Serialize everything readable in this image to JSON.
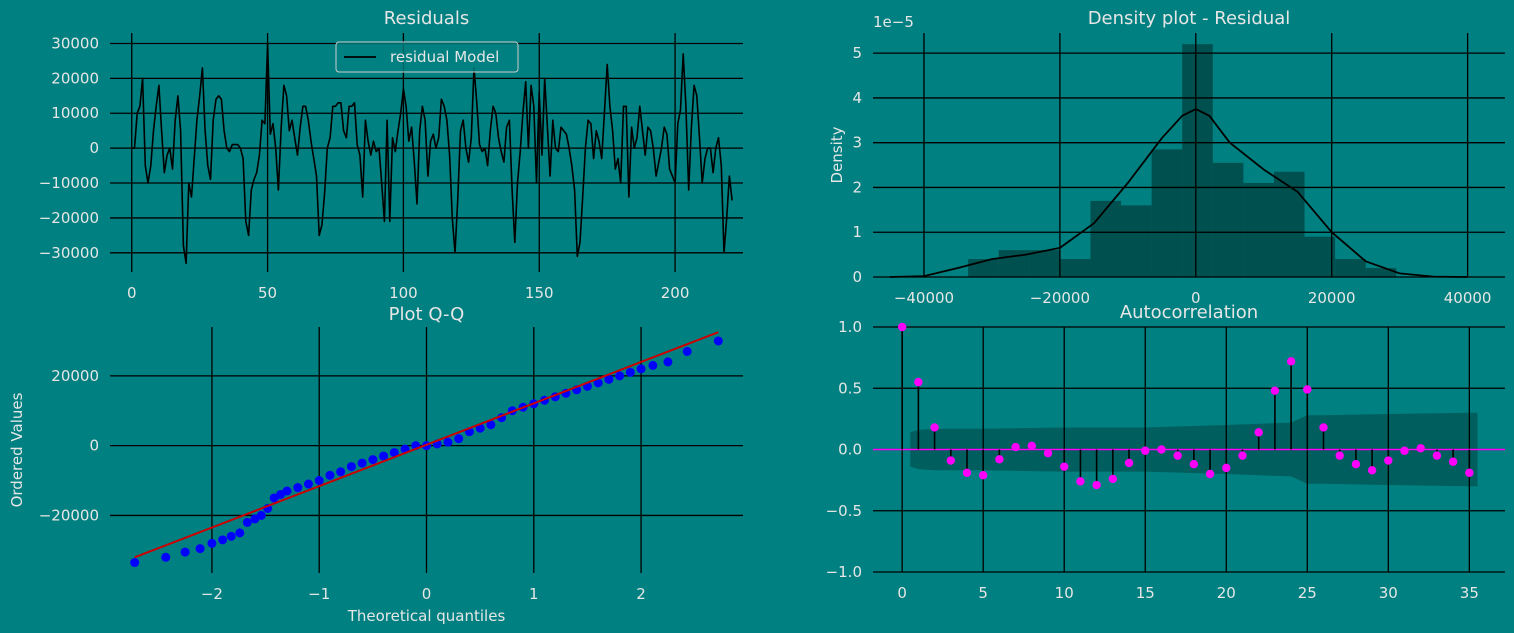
{
  "colors": {
    "background": "#008080",
    "grid": "#000000",
    "residual_line": "#000000",
    "hist_fill": "#004a4a",
    "kde_line": "#000000",
    "qq_points": "#0000ff",
    "qq_line": "#cc0000",
    "acf_marker": "#ff00ff",
    "acf_band": "#005a5a",
    "text": "#e6e6e6"
  },
  "chart_data": [
    {
      "id": "residuals",
      "type": "line",
      "title": "Residuals",
      "xlabel": "",
      "ylabel": "",
      "xlim": [
        -8,
        225
      ],
      "ylim": [
        -35500,
        33000
      ],
      "xticks": [
        0,
        50,
        100,
        150,
        200
      ],
      "xtick_labels": [
        "0",
        "50",
        "100",
        "150",
        "200"
      ],
      "yticks": [
        -30000,
        -20000,
        -10000,
        0,
        10000,
        20000,
        30000
      ],
      "ytick_labels": [
        "−30000",
        "−20000",
        "−10000",
        "0",
        "10000",
        "20000",
        "30000"
      ],
      "grid": true,
      "legend": {
        "position": "top-center",
        "entries": [
          "residual Model"
        ]
      },
      "series": [
        {
          "name": "residual Model",
          "x_start": 0,
          "values": [
            0,
            0,
            10000,
            12000,
            20000,
            -5000,
            -10000,
            -5000,
            5000,
            12000,
            18000,
            5000,
            -7000,
            -2000,
            0,
            -6000,
            8000,
            15000,
            5000,
            -28000,
            -33000,
            -10000,
            -14000,
            -3000,
            8000,
            15000,
            23000,
            5000,
            -5000,
            -9000,
            8000,
            14000,
            15000,
            14000,
            5000,
            0,
            -1000,
            1000,
            1000,
            1000,
            0,
            -3000,
            -21000,
            -25000,
            -12000,
            -9000,
            -7000,
            -2000,
            8000,
            7000,
            30000,
            4000,
            7000,
            0,
            -12000,
            6000,
            18000,
            15000,
            5000,
            8000,
            3000,
            -2000,
            6000,
            12000,
            12000,
            8000,
            2000,
            -3000,
            -8000,
            -25000,
            -22000,
            -13000,
            0,
            3000,
            12000,
            12000,
            13000,
            13000,
            5000,
            3000,
            12000,
            12000,
            13000,
            1000,
            -2000,
            -14000,
            8000,
            2000,
            -2000,
            2000,
            -1000,
            0,
            -10000,
            -21000,
            8000,
            -21000,
            3000,
            -1000,
            5000,
            10000,
            17000,
            12000,
            2000,
            6000,
            -4000,
            -16000,
            5000,
            12000,
            8000,
            -8000,
            2000,
            4000,
            0,
            3000,
            14000,
            12000,
            8000,
            -2000,
            -20000,
            -30000,
            -15000,
            5000,
            8000,
            0,
            -4000,
            3000,
            23000,
            13000,
            1000,
            -1000,
            0,
            -5000,
            5000,
            12000,
            10000,
            3000,
            -1000,
            -4000,
            6000,
            8000,
            -12000,
            -27000,
            -10000,
            -1000,
            10000,
            19000,
            0,
            18000,
            12000,
            -10000,
            16000,
            -2000,
            20000,
            6000,
            -8000,
            8000,
            0,
            -1000,
            6000,
            5000,
            4000,
            0,
            -5000,
            -12000,
            -31000,
            -27000,
            -14000,
            0,
            8000,
            7000,
            -3000,
            5000,
            2000,
            -3000,
            10000,
            24000,
            12000,
            5000,
            -6000,
            -3000,
            -10000,
            12000,
            12000,
            -14000,
            6000,
            0,
            3000,
            12000,
            5000,
            -2000,
            6000,
            5000,
            0,
            -8000,
            -4000,
            0,
            6000,
            4000,
            -6000,
            -8000,
            -10000,
            7000,
            11000,
            27000,
            12000,
            -12000,
            6000,
            18000,
            15000,
            3000,
            -10000,
            -3000,
            0,
            0,
            -7000,
            0,
            3000,
            -5000,
            -30000,
            -20000,
            -8000,
            -15000
          ]
        }
      ]
    },
    {
      "id": "density",
      "type": "bar",
      "title": "Density plot - Residual",
      "xlabel": "",
      "ylabel": "Density",
      "y_scale_label": "1e−5",
      "xlim": [
        -47500,
        45500
      ],
      "ylim": [
        0,
        5.45
      ],
      "xticks": [
        -40000,
        -20000,
        0,
        20000,
        40000
      ],
      "xtick_labels": [
        "−40000",
        "−20000",
        "0",
        "20000",
        "40000"
      ],
      "yticks": [
        0,
        1,
        2,
        3,
        4,
        5
      ],
      "ytick_labels": [
        "0",
        "1",
        "2",
        "3",
        "4",
        "5"
      ],
      "grid": true,
      "histogram": {
        "bin_edges": [
          -33500,
          -29000,
          -24500,
          -20000,
          -15500,
          -11000,
          -6500,
          -2000,
          2500,
          7000,
          11500,
          16000,
          20500,
          25000,
          29500
        ],
        "values": [
          0.4,
          0.6,
          0.6,
          0.4,
          1.7,
          1.6,
          2.85,
          5.2,
          2.55,
          2.1,
          2.35,
          0.9,
          0.4,
          0.2
        ]
      },
      "kde": {
        "x": [
          -45000,
          -40000,
          -35000,
          -30000,
          -25000,
          -20000,
          -15000,
          -10000,
          -5000,
          -2000,
          0,
          2000,
          5000,
          10000,
          15000,
          20000,
          25000,
          30000,
          35000,
          40000
        ],
        "y": [
          0.0,
          0.02,
          0.2,
          0.4,
          0.5,
          0.65,
          1.2,
          2.1,
          3.1,
          3.6,
          3.75,
          3.6,
          3.0,
          2.4,
          1.9,
          1.0,
          0.35,
          0.08,
          0.01,
          0.0
        ]
      }
    },
    {
      "id": "qq",
      "type": "scatter",
      "title": "Plot Q-Q",
      "xlabel": "Theoretical quantiles",
      "ylabel": "Ordered Values",
      "xlim": [
        -2.95,
        2.95
      ],
      "ylim": [
        -36500,
        34000
      ],
      "xticks": [
        -2,
        -1,
        0,
        1,
        2
      ],
      "xtick_labels": [
        "−2",
        "−1",
        "0",
        "1",
        "2"
      ],
      "yticks": [
        -20000,
        0,
        20000
      ],
      "ytick_labels": [
        "−20000",
        "0",
        "20000"
      ],
      "grid": true,
      "points": {
        "x": [
          -2.72,
          -2.43,
          -2.25,
          -2.11,
          -2.0,
          -1.9,
          -1.82,
          -1.74,
          -1.67,
          -1.6,
          -1.54,
          -1.48,
          -1.42,
          -1.36,
          -1.3,
          -1.2,
          -1.1,
          -1.0,
          -0.9,
          -0.8,
          -0.7,
          -0.6,
          -0.5,
          -0.4,
          -0.3,
          -0.2,
          -0.1,
          0.0,
          0.1,
          0.2,
          0.3,
          0.4,
          0.5,
          0.6,
          0.7,
          0.8,
          0.9,
          1.0,
          1.1,
          1.2,
          1.3,
          1.4,
          1.5,
          1.6,
          1.7,
          1.8,
          1.9,
          2.0,
          2.11,
          2.25,
          2.43,
          2.72
        ],
        "y": [
          -33500,
          -32000,
          -30500,
          -29500,
          -28000,
          -27000,
          -26000,
          -25000,
          -22000,
          -21000,
          -20000,
          -18000,
          -15000,
          -14000,
          -13000,
          -12000,
          -11000,
          -10000,
          -8500,
          -7500,
          -6000,
          -5000,
          -4000,
          -3000,
          -2000,
          -1000,
          0,
          0,
          500,
          1000,
          2000,
          4000,
          5000,
          6000,
          8000,
          10000,
          11000,
          12000,
          13000,
          14000,
          15000,
          16000,
          17000,
          18000,
          19000,
          20000,
          21000,
          22000,
          23000,
          24000,
          27000,
          30000
        ]
      },
      "fit_line": {
        "x": [
          -2.72,
          2.72
        ],
        "y": [
          -32000,
          32500
        ]
      }
    },
    {
      "id": "acf",
      "type": "scatter",
      "title": "Autocorrelation",
      "xlabel": "",
      "ylabel": "",
      "xlim": [
        -1.8,
        37.2
      ],
      "ylim": [
        -1.0,
        1.0
      ],
      "xticks": [
        0,
        5,
        10,
        15,
        20,
        25,
        30,
        35
      ],
      "xtick_labels": [
        "0",
        "5",
        "10",
        "15",
        "20",
        "25",
        "30",
        "35"
      ],
      "yticks": [
        -1.0,
        -0.5,
        0.0,
        0.5,
        1.0
      ],
      "ytick_labels": [
        "−1.0",
        "−0.5",
        "0.0",
        "0.5",
        "1.0"
      ],
      "grid": true,
      "lags": [
        0,
        1,
        2,
        3,
        4,
        5,
        6,
        7,
        8,
        9,
        10,
        11,
        12,
        13,
        14,
        15,
        16,
        17,
        18,
        19,
        20,
        21,
        22,
        23,
        24,
        25,
        26,
        27,
        28,
        29,
        30,
        31,
        32,
        33,
        34,
        35
      ],
      "values": [
        1.0,
        0.55,
        0.18,
        -0.09,
        -0.19,
        -0.21,
        -0.08,
        0.02,
        0.03,
        -0.03,
        -0.14,
        -0.26,
        -0.29,
        -0.24,
        -0.11,
        -0.01,
        0.0,
        -0.05,
        -0.12,
        -0.2,
        -0.15,
        -0.05,
        0.14,
        0.48,
        0.72,
        0.49,
        0.18,
        -0.05,
        -0.12,
        -0.17,
        -0.09,
        -0.01,
        0.01,
        -0.05,
        -0.1,
        -0.19
      ],
      "confidence_band": {
        "x": [
          0.5,
          1,
          2,
          3,
          5,
          10,
          15,
          20,
          24,
          25,
          26,
          30,
          35,
          35.5
        ],
        "upper": [
          0.14,
          0.16,
          0.17,
          0.17,
          0.17,
          0.18,
          0.18,
          0.2,
          0.22,
          0.28,
          0.28,
          0.29,
          0.3,
          0.3
        ]
      }
    }
  ]
}
